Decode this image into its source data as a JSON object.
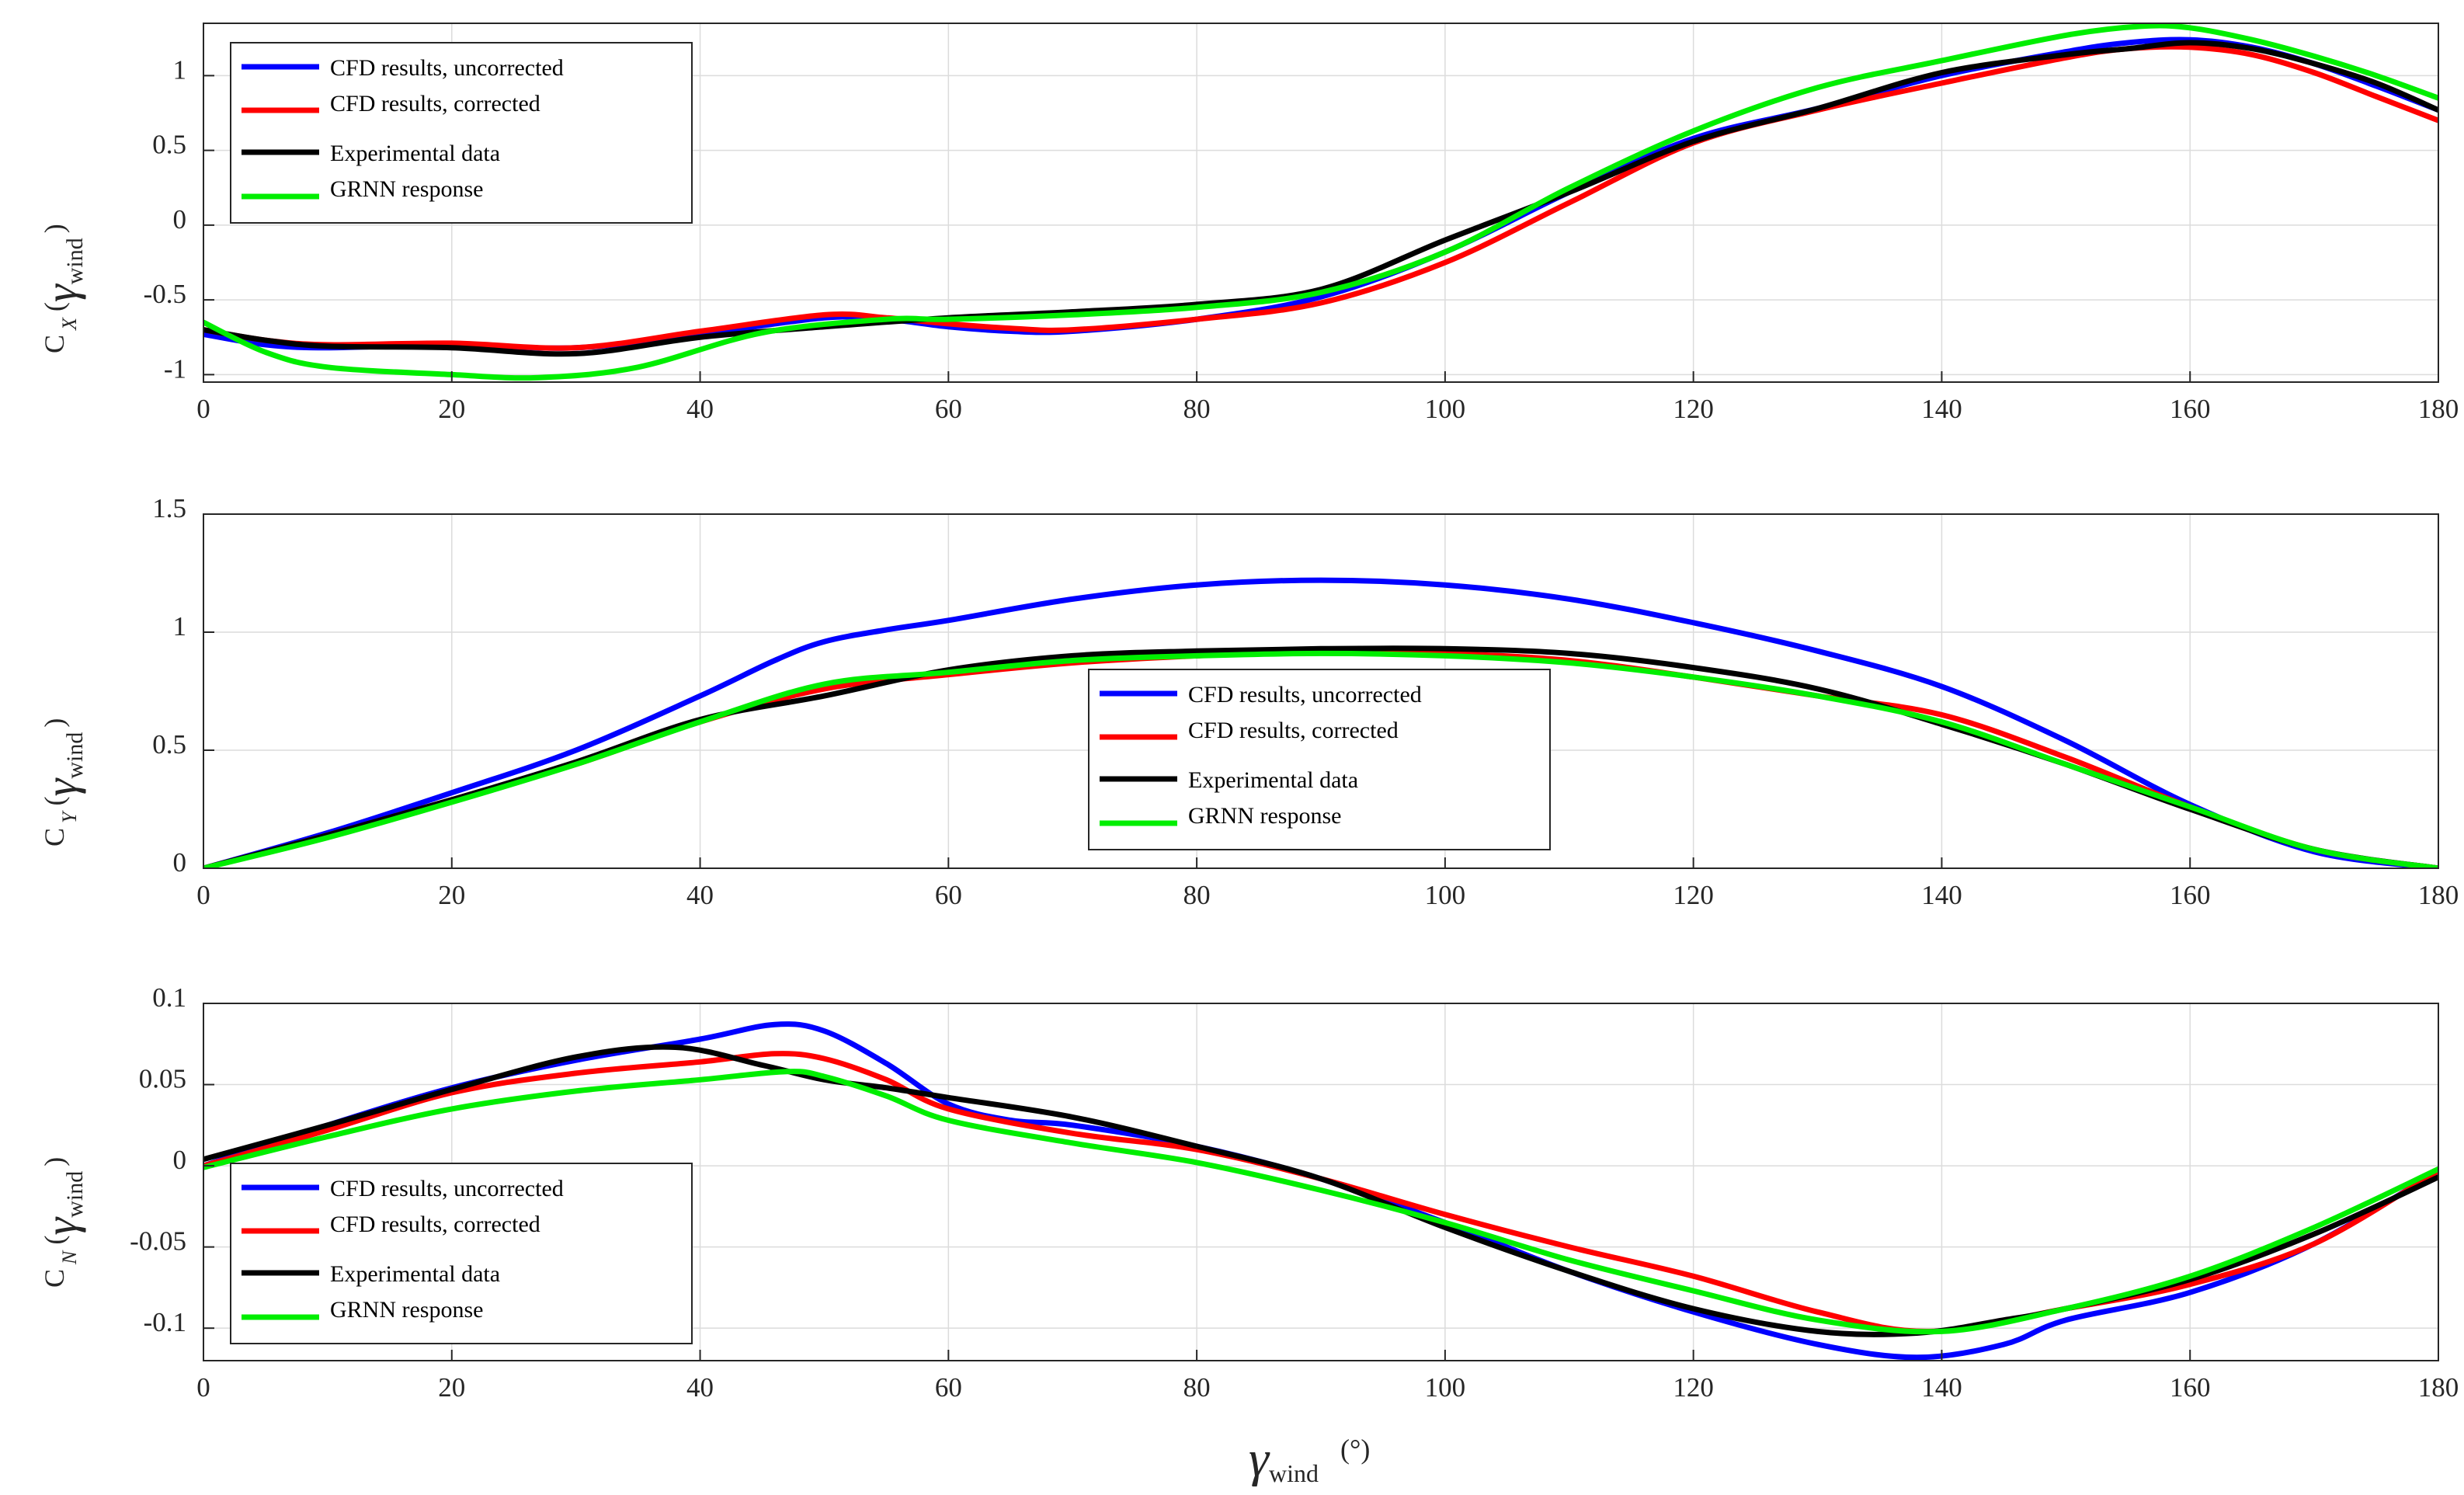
{
  "figure": {
    "xlabel_symbol": "γ",
    "xlabel_subscript": "wind",
    "xlabel_unit": "(°)"
  },
  "chart_data": [
    {
      "type": "line",
      "id": "cx",
      "ylabel": {
        "main": "C",
        "sub": "X",
        "arg_symbol": "γ",
        "arg_sub": "wind"
      },
      "xlim": [
        0,
        180
      ],
      "ylim": [
        -1.05,
        1.35
      ],
      "xticks": [
        0,
        20,
        40,
        60,
        80,
        100,
        120,
        140,
        160,
        180
      ],
      "yticks": [
        -1,
        -0.5,
        0,
        0.5,
        1
      ],
      "ytick_labels": [
        "-1",
        "-0.5",
        "0",
        "0.5",
        "1"
      ],
      "grid": true,
      "legend_position": "top-left",
      "legend_labels": [
        "CFD results, uncorrected",
        "CFD results, corrected",
        "Experimental data",
        "GRNN response"
      ],
      "series": [
        {
          "name": "CFD results, uncorrected",
          "color": "#0000ff",
          "x": [
            0,
            5,
            10,
            20,
            30,
            40,
            50,
            55,
            60,
            65,
            70,
            80,
            90,
            100,
            110,
            120,
            130,
            140,
            150,
            155,
            160,
            165,
            170,
            175,
            180
          ],
          "y": [
            -0.73,
            -0.8,
            -0.82,
            -0.8,
            -0.82,
            -0.73,
            -0.62,
            -0.63,
            -0.68,
            -0.71,
            -0.71,
            -0.63,
            -0.48,
            -0.18,
            0.22,
            0.58,
            0.78,
            1.0,
            1.16,
            1.22,
            1.24,
            1.19,
            1.08,
            0.93,
            0.77
          ]
        },
        {
          "name": "CFD results, corrected",
          "color": "#ff0000",
          "x": [
            0,
            5,
            10,
            20,
            30,
            40,
            50,
            55,
            60,
            65,
            70,
            80,
            90,
            100,
            110,
            120,
            130,
            140,
            150,
            155,
            160,
            165,
            170,
            175,
            180
          ],
          "y": [
            -0.7,
            -0.77,
            -0.8,
            -0.79,
            -0.82,
            -0.71,
            -0.6,
            -0.62,
            -0.66,
            -0.69,
            -0.7,
            -0.63,
            -0.52,
            -0.25,
            0.15,
            0.55,
            0.77,
            0.95,
            1.12,
            1.18,
            1.19,
            1.14,
            1.02,
            0.86,
            0.7
          ]
        },
        {
          "name": "Experimental data",
          "color": "#000000",
          "x": [
            0,
            5,
            10,
            20,
            30,
            40,
            50,
            60,
            70,
            80,
            90,
            100,
            110,
            120,
            130,
            140,
            150,
            155,
            160,
            165,
            170,
            175,
            180
          ],
          "y": [
            -0.7,
            -0.77,
            -0.81,
            -0.82,
            -0.86,
            -0.75,
            -0.68,
            -0.62,
            -0.58,
            -0.53,
            -0.43,
            -0.1,
            0.22,
            0.56,
            0.78,
            1.02,
            1.14,
            1.18,
            1.22,
            1.18,
            1.08,
            0.95,
            0.77
          ]
        },
        {
          "name": "GRNN response",
          "color": "#00ee00",
          "x": [
            0,
            5,
            10,
            20,
            27,
            35,
            45,
            55,
            60,
            70,
            80,
            90,
            100,
            110,
            120,
            130,
            140,
            150,
            156,
            160,
            165,
            170,
            175,
            180
          ],
          "y": [
            -0.65,
            -0.85,
            -0.95,
            -1.0,
            -1.02,
            -0.95,
            -0.72,
            -0.63,
            -0.63,
            -0.6,
            -0.55,
            -0.45,
            -0.18,
            0.25,
            0.63,
            0.92,
            1.1,
            1.27,
            1.33,
            1.32,
            1.24,
            1.13,
            1.0,
            0.85
          ]
        }
      ]
    },
    {
      "type": "line",
      "id": "cy",
      "ylabel": {
        "main": "C",
        "sub": "Y",
        "arg_symbol": "γ",
        "arg_sub": "wind"
      },
      "xlim": [
        0,
        180
      ],
      "ylim": [
        0,
        1.5
      ],
      "xticks": [
        0,
        20,
        40,
        60,
        80,
        100,
        120,
        140,
        160,
        180
      ],
      "yticks": [
        0,
        0.5,
        1,
        1.5
      ],
      "ytick_labels": [
        "0",
        "0.5",
        "1",
        "1.5"
      ],
      "grid": true,
      "legend_position": "center",
      "legend_labels": [
        "CFD results, uncorrected",
        "CFD results, corrected",
        "Experimental data",
        "GRNN response"
      ],
      "series": [
        {
          "name": "CFD results, uncorrected",
          "color": "#0000ff",
          "x": [
            0,
            10,
            20,
            30,
            40,
            46,
            50,
            55,
            60,
            70,
            80,
            90,
            100,
            110,
            120,
            130,
            140,
            150,
            160,
            170,
            180
          ],
          "y": [
            0,
            0.15,
            0.32,
            0.5,
            0.73,
            0.88,
            0.96,
            1.01,
            1.05,
            1.14,
            1.2,
            1.22,
            1.2,
            1.14,
            1.04,
            0.92,
            0.77,
            0.54,
            0.27,
            0.07,
            0
          ]
        },
        {
          "name": "CFD results, corrected",
          "color": "#ff0000",
          "x": [
            0,
            10,
            20,
            30,
            40,
            50,
            60,
            70,
            80,
            90,
            100,
            110,
            120,
            130,
            140,
            150,
            160,
            170,
            180
          ],
          "y": [
            0,
            0.14,
            0.29,
            0.44,
            0.62,
            0.76,
            0.82,
            0.87,
            0.9,
            0.92,
            0.91,
            0.88,
            0.81,
            0.73,
            0.65,
            0.47,
            0.26,
            0.08,
            0
          ]
        },
        {
          "name": "Experimental data",
          "color": "#000000",
          "x": [
            0,
            10,
            20,
            30,
            40,
            50,
            60,
            70,
            80,
            90,
            100,
            110,
            120,
            130,
            140,
            150,
            160,
            170,
            180
          ],
          "y": [
            0,
            0.14,
            0.29,
            0.45,
            0.63,
            0.73,
            0.84,
            0.9,
            0.92,
            0.93,
            0.93,
            0.91,
            0.85,
            0.76,
            0.61,
            0.44,
            0.25,
            0.08,
            0
          ]
        },
        {
          "name": "GRNN response",
          "color": "#00ee00",
          "x": [
            0,
            10,
            20,
            30,
            40,
            50,
            60,
            70,
            80,
            90,
            100,
            110,
            120,
            130,
            140,
            150,
            160,
            170,
            180
          ],
          "y": [
            0,
            0.13,
            0.28,
            0.44,
            0.62,
            0.78,
            0.83,
            0.88,
            0.9,
            0.91,
            0.9,
            0.87,
            0.81,
            0.73,
            0.62,
            0.44,
            0.26,
            0.08,
            0
          ]
        }
      ]
    },
    {
      "type": "line",
      "id": "cn",
      "ylabel": {
        "main": "C",
        "sub": "N",
        "arg_symbol": "γ",
        "arg_sub": "wind"
      },
      "xlim": [
        0,
        180
      ],
      "ylim": [
        -0.12,
        0.1
      ],
      "xticks": [
        0,
        20,
        40,
        60,
        80,
        100,
        120,
        140,
        160,
        180
      ],
      "yticks": [
        -0.1,
        -0.05,
        0,
        0.05,
        0.1
      ],
      "ytick_labels": [
        "-0.1",
        "-0.05",
        "0",
        "0.05",
        "0.1"
      ],
      "grid": true,
      "legend_position": "bottom-left",
      "legend_labels": [
        "CFD results, uncorrected",
        "CFD results, corrected",
        "Experimental data",
        "GRNN response"
      ],
      "series": [
        {
          "name": "CFD results, uncorrected",
          "color": "#0000ff",
          "x": [
            0,
            10,
            20,
            30,
            40,
            46,
            50,
            55,
            60,
            65,
            70,
            80,
            90,
            100,
            110,
            120,
            130,
            138,
            145,
            150,
            160,
            170,
            180
          ],
          "y": [
            0,
            0.025,
            0.048,
            0.065,
            0.078,
            0.087,
            0.083,
            0.063,
            0.038,
            0.028,
            0.025,
            0.012,
            -0.008,
            -0.035,
            -0.065,
            -0.09,
            -0.11,
            -0.118,
            -0.11,
            -0.095,
            -0.078,
            -0.048,
            -0.003
          ]
        },
        {
          "name": "CFD results, corrected",
          "color": "#ff0000",
          "x": [
            0,
            10,
            20,
            30,
            40,
            46,
            50,
            55,
            60,
            70,
            80,
            90,
            100,
            110,
            120,
            130,
            139,
            150,
            160,
            170,
            180
          ],
          "y": [
            0,
            0.022,
            0.045,
            0.057,
            0.064,
            0.069,
            0.066,
            0.053,
            0.035,
            0.02,
            0.01,
            -0.008,
            -0.03,
            -0.05,
            -0.068,
            -0.09,
            -0.102,
            -0.088,
            -0.073,
            -0.048,
            -0.003
          ]
        },
        {
          "name": "Experimental data",
          "color": "#000000",
          "x": [
            0,
            10,
            20,
            30,
            38,
            45,
            50,
            55,
            60,
            70,
            80,
            90,
            100,
            110,
            120,
            130,
            138,
            145,
            150,
            160,
            170,
            180
          ],
          "y": [
            0.004,
            0.025,
            0.047,
            0.067,
            0.073,
            0.062,
            0.053,
            0.048,
            0.042,
            0.03,
            0.012,
            -0.008,
            -0.038,
            -0.065,
            -0.088,
            -0.102,
            -0.103,
            -0.095,
            -0.088,
            -0.07,
            -0.042,
            -0.007
          ]
        },
        {
          "name": "GRNN response",
          "color": "#00ee00",
          "x": [
            0,
            10,
            20,
            30,
            40,
            47,
            50,
            55,
            60,
            70,
            80,
            90,
            100,
            110,
            120,
            130,
            140,
            150,
            160,
            170,
            180
          ],
          "y": [
            -0.001,
            0.018,
            0.035,
            0.046,
            0.053,
            0.058,
            0.055,
            0.043,
            0.028,
            0.014,
            0.002,
            -0.015,
            -0.035,
            -0.058,
            -0.077,
            -0.095,
            -0.102,
            -0.088,
            -0.068,
            -0.038,
            -0.002
          ]
        }
      ]
    }
  ]
}
